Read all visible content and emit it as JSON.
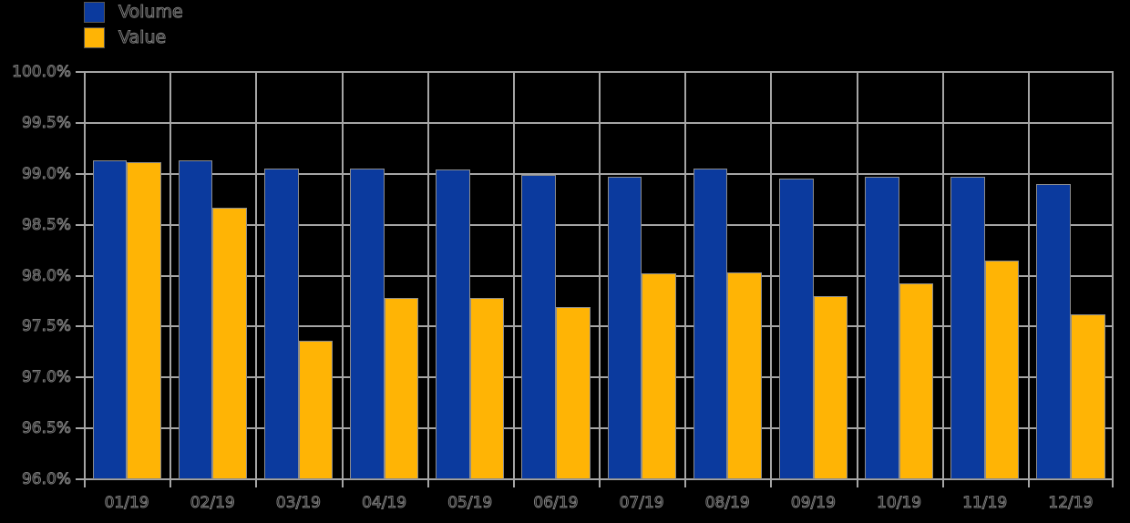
{
  "chart_data": {
    "type": "bar",
    "title": "",
    "xlabel": "",
    "ylabel": "",
    "categories": [
      "01/19",
      "02/19",
      "03/19",
      "04/19",
      "05/19",
      "06/19",
      "07/19",
      "08/19",
      "09/19",
      "10/19",
      "11/19",
      "12/19"
    ],
    "series": [
      {
        "name": "Volume",
        "color": "#0b3a9e",
        "values": [
          99.13,
          99.13,
          99.05,
          99.05,
          99.04,
          98.99,
          98.97,
          99.05,
          98.95,
          98.97,
          98.97,
          98.9
        ]
      },
      {
        "name": "Value",
        "color": "#ffb405",
        "values": [
          99.11,
          98.67,
          97.36,
          97.78,
          97.78,
          97.69,
          98.02,
          98.03,
          97.8,
          97.92,
          98.15,
          97.62
        ]
      }
    ],
    "ylim": [
      96.0,
      100.0
    ],
    "ytick_step": 0.5,
    "ytick_labels": [
      "100.0%",
      "99.5%",
      "99.0%",
      "98.5%",
      "98.0%",
      "97.5%",
      "97.0%",
      "96.5%",
      "96.0%"
    ],
    "unit": "%",
    "grid": true,
    "legend_position": "top-left"
  },
  "colors": {
    "grid": "#a5a5a5",
    "background": "#000000",
    "text_outline": "#7e7e7e"
  }
}
